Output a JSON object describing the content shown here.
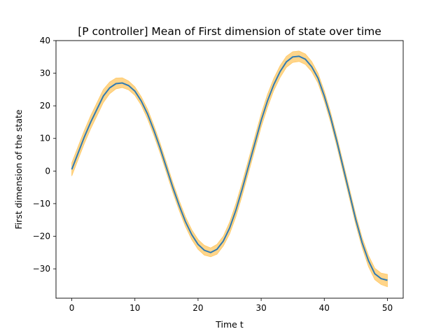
{
  "chart_data": {
    "type": "line",
    "title": "[P controller] Mean of First dimension of state over time",
    "xlabel": "Time t",
    "ylabel": "First dimension of the state",
    "xlim": [
      -2.5,
      52.5
    ],
    "ylim": [
      -39,
      40
    ],
    "x_ticks": [
      0,
      10,
      20,
      30,
      40,
      50
    ],
    "y_ticks": [
      -30,
      -20,
      -10,
      0,
      10,
      20,
      30,
      40
    ],
    "grid": false,
    "colors": {
      "mean_line": "#2f7bb4",
      "band_fill": "#ffd58a",
      "band_edge": "#ffc966"
    },
    "series": [
      {
        "kind": "mean",
        "x": [
          0,
          1,
          2,
          3,
          4,
          5,
          6,
          7,
          8,
          9,
          10,
          11,
          12,
          13,
          14,
          15,
          16,
          17,
          18,
          19,
          20,
          21,
          22,
          23,
          24,
          25,
          26,
          27,
          28,
          29,
          30,
          31,
          32,
          33,
          34,
          35,
          36,
          37,
          38,
          39,
          40,
          41,
          42,
          43,
          44,
          45,
          46,
          47,
          48,
          49,
          50
        ],
        "values": [
          0.5,
          5.5,
          10.5,
          15,
          19,
          23,
          25.5,
          26.8,
          27.0,
          26.2,
          24.5,
          21.5,
          17.5,
          12.5,
          7,
          1,
          -5,
          -10.5,
          -15.5,
          -19.5,
          -22.5,
          -24.3,
          -25,
          -24,
          -21.5,
          -17.5,
          -12,
          -5.5,
          1.5,
          8.5,
          15.5,
          21.5,
          26.5,
          30.5,
          33.5,
          35,
          35.2,
          34.3,
          32,
          28.5,
          23,
          16.5,
          9,
          1,
          -7,
          -15,
          -22,
          -27.5,
          -31.5,
          -33,
          -33.5
        ]
      },
      {
        "kind": "lower_band",
        "values": [
          -1.5,
          3.5,
          8.5,
          13,
          17,
          21,
          23.7,
          25.2,
          25.6,
          24.9,
          23.2,
          20.2,
          16,
          11,
          5.5,
          -0.5,
          -6.5,
          -12,
          -17,
          -21,
          -24,
          -25.8,
          -26.3,
          -25.5,
          -23,
          -19.3,
          -14,
          -7.5,
          -0.5,
          6.5,
          13.5,
          19.5,
          24.7,
          28.7,
          31.8,
          33.3,
          33.6,
          32.7,
          30.5,
          27,
          21.5,
          15,
          7.5,
          -0.5,
          -8.5,
          -16.5,
          -23.5,
          -29.3,
          -33.3,
          -34.8,
          -35.5
        ]
      },
      {
        "kind": "upper_band",
        "values": [
          2.5,
          7.5,
          12.5,
          17,
          21,
          25,
          27.3,
          28.5,
          28.6,
          27.6,
          25.8,
          22.8,
          19,
          14,
          8.5,
          2.5,
          -3.5,
          -9,
          -14,
          -18,
          -21,
          -22.8,
          -23.6,
          -22.5,
          -20,
          -15.7,
          -10,
          -3.5,
          3.5,
          10.5,
          17.5,
          23.5,
          28.4,
          32.3,
          35.2,
          36.6,
          36.8,
          35.9,
          33.6,
          30,
          24.5,
          18,
          10.5,
          2.5,
          -5.5,
          -13.5,
          -20.5,
          -25.9,
          -29.8,
          -31.3,
          -31.7
        ]
      }
    ]
  }
}
